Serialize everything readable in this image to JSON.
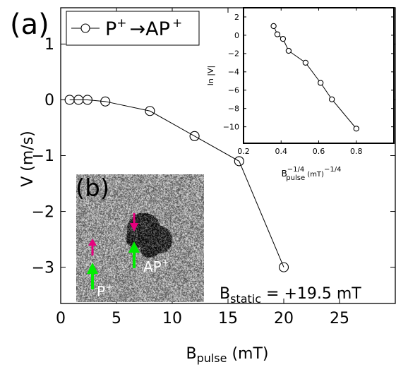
{
  "panel_labels": {
    "a": "(a)",
    "b": "(b)"
  },
  "colors": {
    "line": "#000000",
    "up_arrow": "#e6007e",
    "green_arrow": "#00ee00",
    "inset_label": "#ffffff"
  },
  "chart_data": [
    {
      "type": "line",
      "marker": "open-circle",
      "x": [
        0.8,
        1.6,
        2.4,
        4.0,
        8.0,
        12.0,
        16.0,
        20.0
      ],
      "y": [
        0.0,
        0.0,
        0.0,
        -0.03,
        -0.2,
        -0.65,
        -1.1,
        -3.0
      ],
      "xlim": [
        0,
        30
      ],
      "ylim": [
        -3.65,
        1.65
      ],
      "xticks": [
        0,
        5,
        10,
        15,
        20,
        25
      ],
      "yticks": [
        -3,
        -2,
        -1,
        0,
        1
      ],
      "tick_labels_x": [
        "0",
        "5",
        "10",
        "15",
        "20",
        "25"
      ],
      "tick_labels_y": [
        "−3",
        "−2",
        "−1",
        "0",
        "1"
      ],
      "xlabel_main": "B",
      "xlabel_sub": "pulse",
      "xlabel_unit": " (mT)",
      "ylabel": "V (m/s)",
      "legend": {
        "from": "P",
        "to": "AP",
        "sup": "+",
        "arrow": "→"
      },
      "annotation": {
        "main": "B",
        "sub": "static",
        "rest": " = +19.5 mT"
      }
    },
    {
      "type": "scatter",
      "connected": true,
      "marker": "open-circle",
      "x": [
        0.36,
        0.38,
        0.41,
        0.44,
        0.53,
        0.61,
        0.67,
        0.8
      ],
      "y": [
        1.0,
        0.1,
        -0.4,
        -1.7,
        -3.0,
        -5.2,
        -7.0,
        -10.2
      ],
      "xlim": [
        0.2,
        1.0
      ],
      "ylim": [
        -11.8,
        3.0
      ],
      "xticks": [
        0.2,
        0.4,
        0.6,
        0.8
      ],
      "yticks": [
        2,
        0,
        -2,
        -4,
        -6,
        -8,
        -10
      ],
      "tick_labels_x": [
        "0.2",
        "0.4",
        "0.6",
        "0.8"
      ],
      "tick_labels_y": [
        "2",
        "0",
        "−2",
        "−4",
        "−6",
        "−8",
        "−10"
      ],
      "ylabel": "ln |V|",
      "xlabel_main": "B",
      "xlabel_sup": "−1/4",
      "xlabel_sub": "pulse",
      "xlabel_unit": " (mT)",
      "xlabel_unit_sup": "−1/4"
    }
  ],
  "image_b": {
    "label_p": "P",
    "label_ap": "AP",
    "label_sup": "+"
  }
}
